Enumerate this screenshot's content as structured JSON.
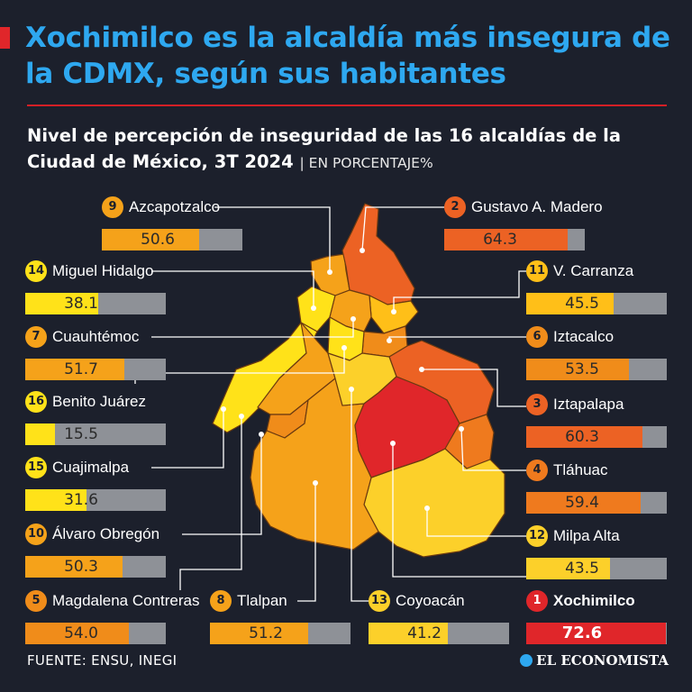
{
  "header": {
    "title": "Xochimilco es la alcaldía más insegura de la CDMX, según sus habitantes",
    "subtitle": "Nivel de percepción de inseguridad de las 16 alcaldías de la Ciudad de México, 3T 2024",
    "subtitle_unit": "| EN PORCENTAJE%"
  },
  "footer": {
    "source": "FUENTE: ENSU, INEGI",
    "brand": "EL ECONOMISTA"
  },
  "colors": {
    "title": "#2ea8f0",
    "accent_red": "#e0262a",
    "bar_track": "#8e9197",
    "scale": [
      "#ffe219",
      "#fcd02a",
      "#ffbf18",
      "#f5a21a",
      "#f08c1a",
      "#ef7a1e",
      "#ec6224",
      "#f01818"
    ]
  },
  "chart_data": {
    "type": "bar",
    "unit": "%",
    "ylim": [
      0,
      100
    ],
    "categories": [
      "Azcapotzalco",
      "Gustavo A. Madero",
      "Miguel Hidalgo",
      "V. Carranza",
      "Cuauhtémoc",
      "Iztacalco",
      "Benito Juárez",
      "Iztapalapa",
      "Cuajimalpa",
      "Tláhuac",
      "Álvaro Obregón",
      "Milpa Alta",
      "Magdalena Contreras",
      "Tlalpan",
      "Coyoacán",
      "Xochimilco"
    ],
    "ranks": [
      9,
      2,
      14,
      11,
      7,
      6,
      16,
      3,
      15,
      4,
      10,
      12,
      5,
      8,
      13,
      1
    ],
    "values": [
      50.6,
      64.3,
      38.1,
      45.5,
      51.7,
      53.5,
      15.5,
      60.3,
      31.6,
      59.4,
      50.3,
      43.5,
      54.0,
      51.2,
      41.2,
      72.6
    ],
    "value_labels": [
      "50.6",
      "64.3",
      "38.1",
      "45.5",
      "51.7",
      "53.5",
      "15.5",
      "60.3",
      "31.6",
      "59.4",
      "50.3",
      "43.5",
      "54.0",
      "51.2",
      "41.2",
      "72.6"
    ]
  }
}
